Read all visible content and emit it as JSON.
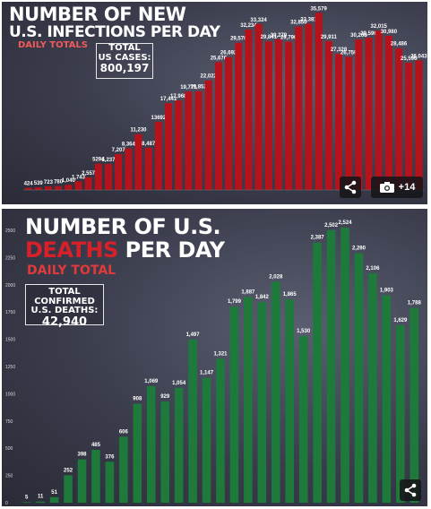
{
  "top": {
    "title_line1": "NUMBER OF NEW",
    "title_line2": "U.S. INFECTIONS PER DAY",
    "subtitle": "DAILY TOTALS",
    "box_line1": "TOTAL",
    "box_line2": "US CASES:",
    "box_value": "800,197",
    "gallery_count": "+14",
    "icons": [
      "share-icon",
      "camera-icon"
    ]
  },
  "bottom": {
    "title_line1": "NUMBER OF U.S.",
    "title_deaths": "DEATHS",
    "title_rest": " PER DAY",
    "subtitle": "DAILY TOTAL",
    "box_line1": "TOTAL CONFIRMED",
    "box_line2": "U.S. DEATHS:",
    "box_value": "42,940",
    "icons": [
      "share-icon"
    ]
  },
  "chart_data": [
    {
      "type": "bar",
      "title": "NUMBER OF NEW U.S. INFECTIONS PER DAY",
      "subtitle": "DAILY TOTALS",
      "ylim": [
        0,
        36000
      ],
      "grid": false,
      "bar_color": "#b5121b",
      "values": [
        424,
        539,
        723,
        780,
        1040,
        1743,
        2557,
        5294,
        5237,
        7207,
        8364,
        11230,
        8487,
        13692,
        17441,
        17968,
        19771,
        19852,
        22022,
        25676,
        26692,
        29570,
        32234,
        33324,
        29841,
        30279,
        29790,
        32850,
        33381,
        35579,
        29911,
        27328,
        26759,
        30208,
        30590,
        32015,
        30980,
        28486,
        25596,
        26043
      ],
      "labels": [
        "424",
        "539",
        "723",
        "780",
        "1,040",
        "1,743",
        "2,557",
        "5294",
        "5,237",
        "7,207",
        "8,364",
        "11,230",
        "8,487",
        "13692",
        "17,441",
        "17,968",
        "19,771",
        "19,852",
        "22,022",
        "25,676",
        "26,692",
        "29,570",
        "32,234",
        "33,324",
        "29,841",
        "30,279",
        "29,790",
        "32,850",
        "33,381",
        "35,579",
        "29,911",
        "27,328",
        "26,759",
        "30,208",
        "30,590",
        "32,015",
        "30,980",
        "28,486",
        "25,596",
        "26,043"
      ]
    },
    {
      "type": "bar",
      "title": "NUMBER OF U.S. DEATHS PER DAY",
      "subtitle": "DAILY TOTAL",
      "ylim": [
        0,
        2600
      ],
      "yticks": [
        0,
        250,
        500,
        750,
        1000,
        1250,
        1500,
        1750,
        2000,
        2250,
        2500
      ],
      "ytick_labels": [
        "0",
        "250",
        "500",
        "750",
        "1000",
        "1250",
        "1500",
        "1750",
        "2000",
        "2250",
        "2500"
      ],
      "grid": false,
      "bar_color": "#1d7a3a",
      "values": [
        5,
        11,
        51,
        252,
        398,
        485,
        376,
        606,
        908,
        1069,
        929,
        1054,
        1497,
        1147,
        1321,
        1799,
        1887,
        1842,
        2028,
        1865,
        1530,
        2387,
        2502,
        2524,
        2290,
        2106,
        1903,
        1629,
        1788
      ],
      "labels": [
        "5",
        "11",
        "51",
        "252",
        "398",
        "485",
        "376",
        "606",
        "908",
        "1,069",
        "929",
        "1,054",
        "1,497",
        "1,147",
        "1,321",
        "1,799",
        "1,887",
        "1,842",
        "2,028",
        "1,865",
        "1,530",
        "2,387",
        "2,502",
        "2,524",
        "2,290",
        "2,106",
        "1,903",
        "1,629",
        "1,788"
      ]
    }
  ]
}
